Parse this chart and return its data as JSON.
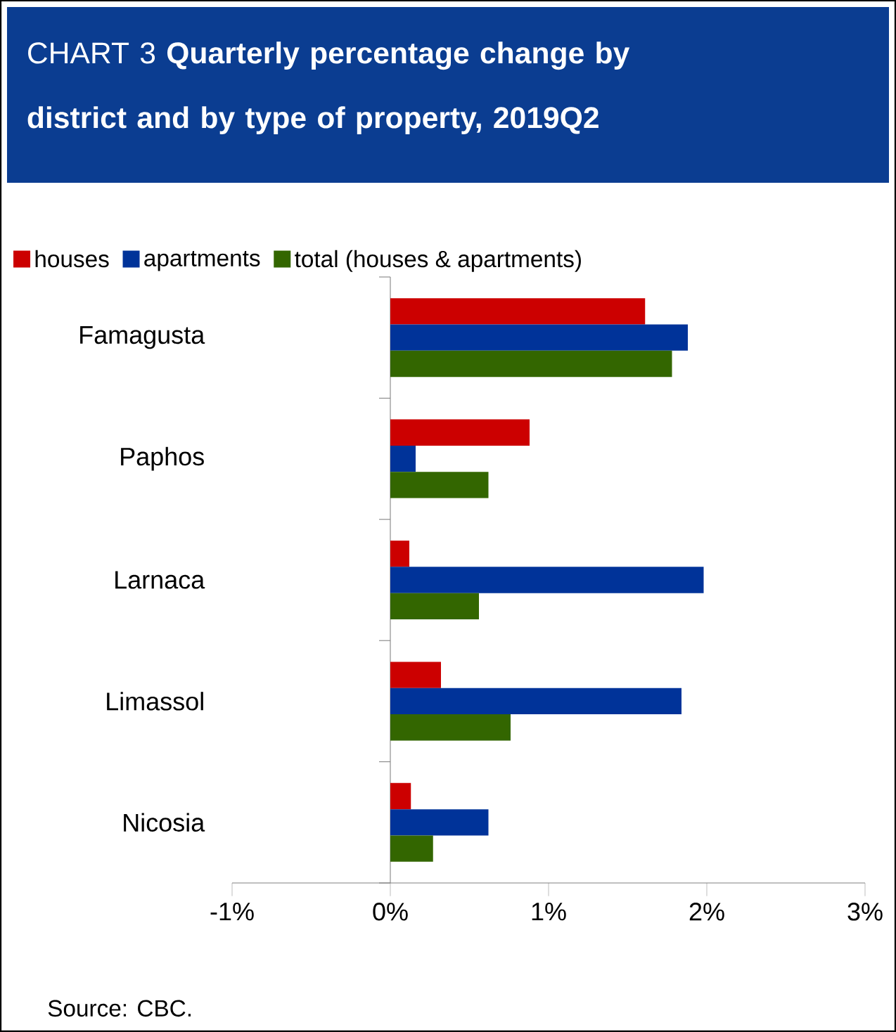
{
  "chart_data": {
    "type": "bar",
    "orientation": "horizontal",
    "title": "CHART 3 **Quarterly percentage change by district and by type of property, 2019Q2**",
    "categories": [
      "Famagusta",
      "Paphos",
      "Larnaca",
      "Limassol",
      "Nicosia"
    ],
    "series": [
      {
        "name": "houses",
        "color": "#cc0000",
        "values": [
          1.61,
          0.88,
          0.12,
          0.32,
          0.13
        ]
      },
      {
        "name": "apartments",
        "color": "#003399",
        "values": [
          1.88,
          0.16,
          1.98,
          1.84,
          0.62
        ]
      },
      {
        "name": "total (houses & apartments)",
        "color": "#336600",
        "values": [
          1.78,
          0.62,
          0.56,
          0.76,
          0.27
        ]
      }
    ],
    "xlim": [
      -1,
      3
    ],
    "xticks": [
      {
        "value": -1,
        "label": "-1%"
      },
      {
        "value": 0,
        "label": "0%"
      },
      {
        "value": 1,
        "label": "1%"
      },
      {
        "value": 2,
        "label": "2%"
      },
      {
        "value": 3,
        "label": "3%"
      }
    ],
    "legend": "top",
    "annotations": [
      "Source: CBC."
    ]
  }
}
